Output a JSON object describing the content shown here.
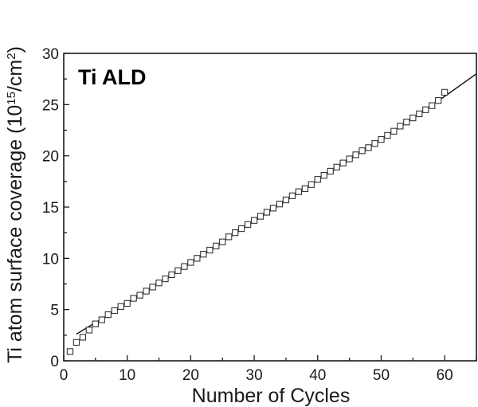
{
  "chart_data": {
    "type": "scatter",
    "title": "",
    "xlabel": "Number of Cycles",
    "ylabel": {
      "prefix": "Ti atom surface coverage (10",
      "sup1": "15",
      "middle": "/cm",
      "sup2": "2",
      "suffix": ")"
    },
    "annotation": "Ti ALD",
    "xlim": [
      0,
      65
    ],
    "ylim": [
      0,
      30
    ],
    "x_ticks": [
      0,
      10,
      20,
      30,
      40,
      50,
      60
    ],
    "y_ticks": [
      0,
      5,
      10,
      15,
      20,
      25,
      30
    ],
    "grid": false,
    "legend": "none",
    "series": [
      {
        "kind": "markers",
        "marker": "open-square",
        "x": [
          1,
          2,
          3,
          4,
          5,
          6,
          7,
          8,
          9,
          10,
          11,
          12,
          13,
          14,
          15,
          16,
          17,
          18,
          19,
          20,
          21,
          22,
          23,
          24,
          25,
          26,
          27,
          28,
          29,
          30,
          31,
          32,
          33,
          34,
          35,
          36,
          37,
          38,
          39,
          40,
          41,
          42,
          43,
          44,
          45,
          46,
          47,
          48,
          49,
          50,
          51,
          52,
          53,
          54,
          55,
          56,
          57,
          58,
          59,
          60
        ],
        "y": [
          0.9,
          1.8,
          2.3,
          3.0,
          3.6,
          4.0,
          4.5,
          4.9,
          5.3,
          5.6,
          6.1,
          6.4,
          6.8,
          7.2,
          7.6,
          8.0,
          8.4,
          8.8,
          9.2,
          9.6,
          10.0,
          10.4,
          10.8,
          11.2,
          11.6,
          12.1,
          12.5,
          12.9,
          13.3,
          13.7,
          14.1,
          14.5,
          14.9,
          15.3,
          15.7,
          16.1,
          16.5,
          16.8,
          17.2,
          17.7,
          18.1,
          18.5,
          18.9,
          19.3,
          19.7,
          20.1,
          20.5,
          20.8,
          21.2,
          21.6,
          22.0,
          22.4,
          22.9,
          23.3,
          23.7,
          24.1,
          24.5,
          24.9,
          25.4,
          26.2
        ]
      },
      {
        "kind": "line",
        "x": [
          2,
          10,
          20,
          30,
          40,
          50,
          60,
          65
        ],
        "y": [
          2.6,
          5.6,
          9.6,
          13.6,
          17.6,
          21.6,
          25.8,
          28.0
        ]
      }
    ]
  },
  "colors": {
    "axis": "#1a1a1a",
    "marker_stroke": "#333333",
    "line": "#111111",
    "background": "#ffffff"
  }
}
